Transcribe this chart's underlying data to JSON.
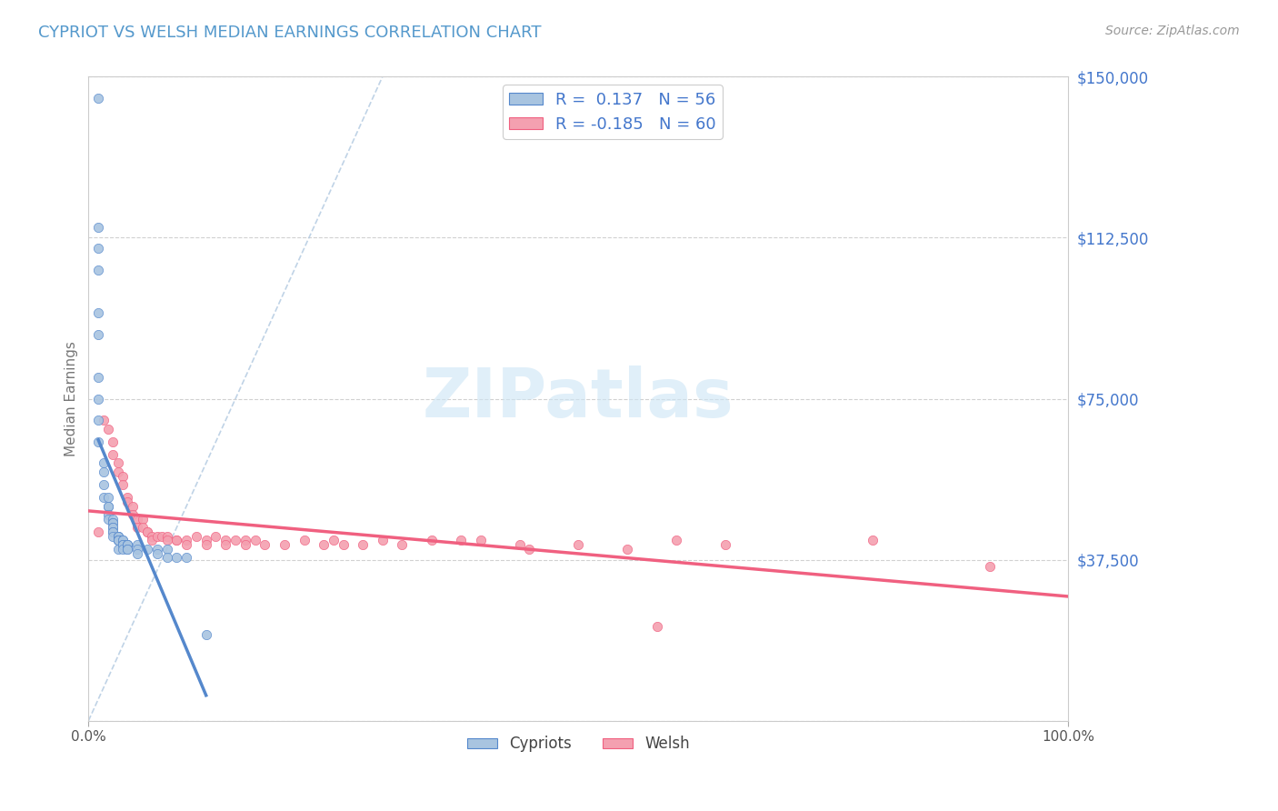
{
  "title": "CYPRIOT VS WELSH MEDIAN EARNINGS CORRELATION CHART",
  "source": "Source: ZipAtlas.com",
  "ylabel": "Median Earnings",
  "yticks": [
    0,
    37500,
    75000,
    112500,
    150000
  ],
  "ytick_labels": [
    "",
    "$37,500",
    "$75,000",
    "$112,500",
    "$150,000"
  ],
  "xlim": [
    0.0,
    1.0
  ],
  "ylim": [
    0,
    150000
  ],
  "cypriot_color": "#a8c4e0",
  "welsh_color": "#f4a0b0",
  "cypriot_line_color": "#5588cc",
  "welsh_line_color": "#f06080",
  "diag_line_color": "#b0c8e0",
  "R_cypriot": 0.137,
  "N_cypriot": 56,
  "R_welsh": -0.185,
  "N_welsh": 60,
  "legend_text_color": "#4477cc",
  "title_color": "#5599cc",
  "axis_color": "#cccccc",
  "grid_color": "#cccccc",
  "cypriot_x": [
    0.01,
    0.01,
    0.01,
    0.01,
    0.01,
    0.01,
    0.01,
    0.01,
    0.01,
    0.01,
    0.015,
    0.015,
    0.015,
    0.015,
    0.02,
    0.02,
    0.02,
    0.02,
    0.02,
    0.025,
    0.025,
    0.025,
    0.025,
    0.025,
    0.025,
    0.025,
    0.025,
    0.03,
    0.03,
    0.03,
    0.03,
    0.03,
    0.03,
    0.03,
    0.03,
    0.035,
    0.035,
    0.035,
    0.035,
    0.035,
    0.04,
    0.04,
    0.04,
    0.04,
    0.04,
    0.05,
    0.05,
    0.05,
    0.06,
    0.07,
    0.07,
    0.08,
    0.08,
    0.09,
    0.1,
    0.12
  ],
  "cypriot_y": [
    145000,
    115000,
    110000,
    105000,
    95000,
    90000,
    80000,
    75000,
    70000,
    65000,
    60000,
    58000,
    55000,
    52000,
    52000,
    50000,
    50000,
    48000,
    47000,
    47000,
    46000,
    46000,
    45000,
    45000,
    44000,
    44000,
    43000,
    43000,
    43000,
    43000,
    42000,
    42000,
    42000,
    42000,
    40000,
    42000,
    42000,
    41000,
    41000,
    40000,
    41000,
    41000,
    41000,
    40000,
    40000,
    41000,
    40000,
    39000,
    40000,
    40000,
    39000,
    40000,
    38000,
    38000,
    38000,
    20000
  ],
  "welsh_x": [
    0.01,
    0.015,
    0.02,
    0.025,
    0.025,
    0.03,
    0.03,
    0.035,
    0.035,
    0.04,
    0.04,
    0.045,
    0.045,
    0.05,
    0.05,
    0.055,
    0.055,
    0.06,
    0.06,
    0.065,
    0.065,
    0.07,
    0.075,
    0.08,
    0.08,
    0.09,
    0.09,
    0.1,
    0.1,
    0.11,
    0.12,
    0.12,
    0.13,
    0.14,
    0.14,
    0.15,
    0.16,
    0.16,
    0.17,
    0.18,
    0.2,
    0.22,
    0.24,
    0.25,
    0.26,
    0.28,
    0.3,
    0.32,
    0.35,
    0.38,
    0.4,
    0.44,
    0.45,
    0.5,
    0.55,
    0.6,
    0.65,
    0.8,
    0.92,
    0.58
  ],
  "welsh_y": [
    44000,
    70000,
    68000,
    65000,
    62000,
    60000,
    58000,
    57000,
    55000,
    52000,
    51000,
    50000,
    48000,
    47000,
    45000,
    47000,
    45000,
    44000,
    44000,
    43000,
    42000,
    43000,
    43000,
    43000,
    42000,
    42000,
    42000,
    42000,
    41000,
    43000,
    42000,
    41000,
    43000,
    42000,
    41000,
    42000,
    42000,
    41000,
    42000,
    41000,
    41000,
    42000,
    41000,
    42000,
    41000,
    41000,
    42000,
    41000,
    42000,
    42000,
    42000,
    41000,
    40000,
    41000,
    40000,
    42000,
    41000,
    42000,
    36000,
    22000
  ]
}
